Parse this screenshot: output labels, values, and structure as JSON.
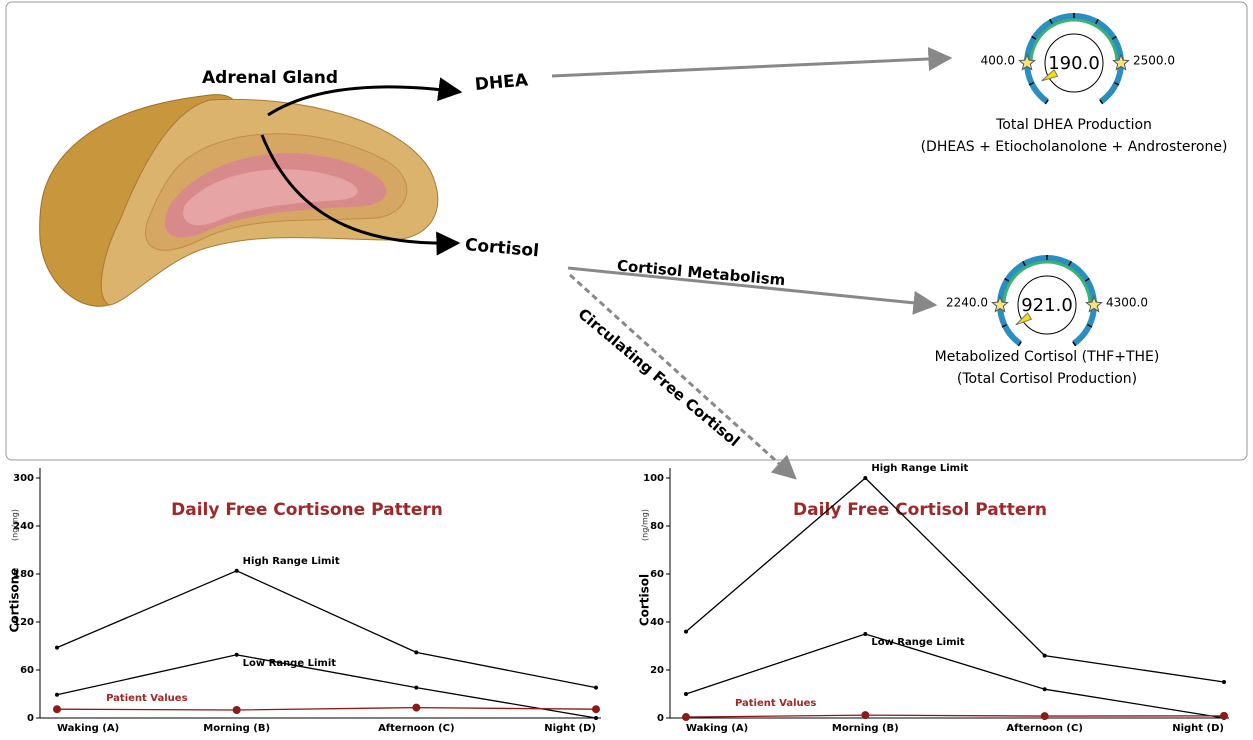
{
  "diagram": {
    "labels": {
      "adrenal_gland": "Adrenal Gland",
      "dhea": "DHEA",
      "cortisol": "Cortisol",
      "cortisol_metabolism": "Cortisol Metabolism",
      "circulating_free_cortisol": "Circulating Free Cortisol"
    },
    "gauges": [
      {
        "value": {
          "value": 190,
          "label": "190.0"
        },
        "min": {
          "value": 400,
          "label": "400.0"
        },
        "max": {
          "value": 2500,
          "label": "2500.0"
        },
        "caption": [
          "Total DHEA Production",
          "(DHEAS + Etiocholanolone + Androsterone)"
        ]
      },
      {
        "value": {
          "value": 921,
          "label": "921.0"
        },
        "min": {
          "value": 2240,
          "label": "2240.0"
        },
        "max": {
          "value": 4300,
          "label": "4300.0"
        },
        "caption": [
          "Metabolized Cortisol (THF+THE)",
          "(Total Cortisol Production)"
        ]
      }
    ]
  },
  "chart_data": [
    {
      "type": "line",
      "title": "Daily Free Cortisone Pattern",
      "y_label": "Cortisone",
      "y_unit": "(ng/mg)",
      "categories": [
        "Waking (A)",
        "Morning (B)",
        "Afternoon (C)",
        "Night (D)"
      ],
      "series": [
        {
          "name": "High Range Limit",
          "color": "#000000",
          "values": [
            88,
            184,
            82,
            38
          ]
        },
        {
          "name": "Low Range Limit",
          "color": "#000000",
          "values": [
            29,
            79,
            38,
            0
          ]
        },
        {
          "name": "Patient Values",
          "color": "#8b1a1a",
          "values": [
            11,
            10,
            13,
            11
          ]
        }
      ],
      "ylim": [
        0,
        300
      ],
      "yticks": [
        0,
        60,
        120,
        180,
        240,
        300
      ]
    },
    {
      "type": "line",
      "title": "Daily Free Cortisol Pattern",
      "y_label": "Cortisol",
      "y_unit": "(ng/mg)",
      "categories": [
        "Waking (A)",
        "Morning (B)",
        "Afternoon (C)",
        "Night (D)"
      ],
      "series": [
        {
          "name": "High Range Limit",
          "color": "#000000",
          "values": [
            36,
            100,
            26,
            15
          ]
        },
        {
          "name": "Low Range Limit",
          "color": "#000000",
          "values": [
            10,
            35,
            12,
            0
          ]
        },
        {
          "name": "Patient Values",
          "color": "#8b1a1a",
          "values": [
            0.4,
            1.2,
            0.8,
            0.9
          ]
        }
      ],
      "ylim": [
        0,
        100
      ],
      "yticks": [
        0,
        20,
        40,
        60,
        80,
        100
      ]
    }
  ]
}
